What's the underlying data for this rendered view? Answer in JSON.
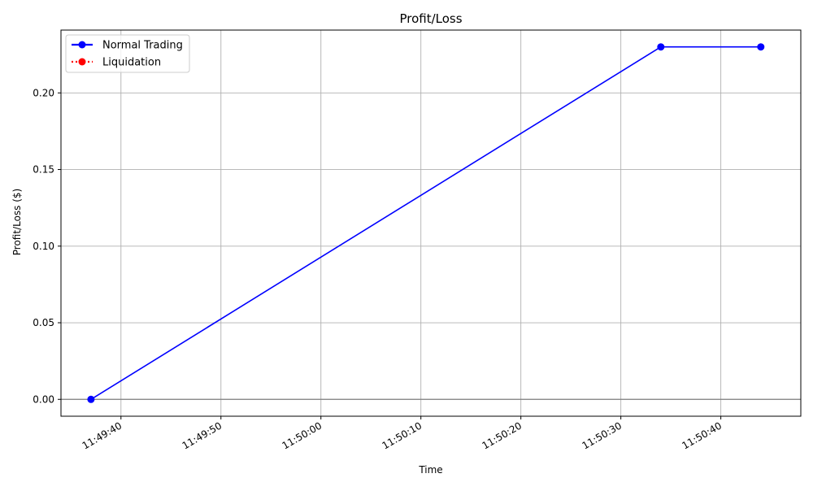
{
  "chart_data": {
    "type": "line",
    "title": "Profit/Loss",
    "xlabel": "Time",
    "ylabel": "Profit/Loss ($)",
    "x_type": "time",
    "xlim": [
      "11:49:34",
      "11:50:48"
    ],
    "ylim": [
      -0.011,
      0.241
    ],
    "x_ticks": [
      "11:49:40",
      "11:49:50",
      "11:50:00",
      "11:50:10",
      "11:50:20",
      "11:50:30",
      "11:50:40"
    ],
    "y_ticks": [
      0.0,
      0.05,
      0.1,
      0.15,
      0.2
    ],
    "y_tick_labels": [
      "0.00",
      "0.05",
      "0.10",
      "0.15",
      "0.20"
    ],
    "grid": true,
    "reference_line_y": 0,
    "legend_position": "top-left",
    "series": [
      {
        "name": "Normal Trading",
        "color": "#0000ff",
        "style": "solid",
        "marker": "circle",
        "x": [
          "11:49:37",
          "11:50:34",
          "11:50:44"
        ],
        "y": [
          0.0,
          0.23,
          0.23
        ]
      },
      {
        "name": "Liquidation",
        "color": "#ff0000",
        "style": "dotted",
        "marker": "circle",
        "x": [],
        "y": []
      }
    ]
  }
}
